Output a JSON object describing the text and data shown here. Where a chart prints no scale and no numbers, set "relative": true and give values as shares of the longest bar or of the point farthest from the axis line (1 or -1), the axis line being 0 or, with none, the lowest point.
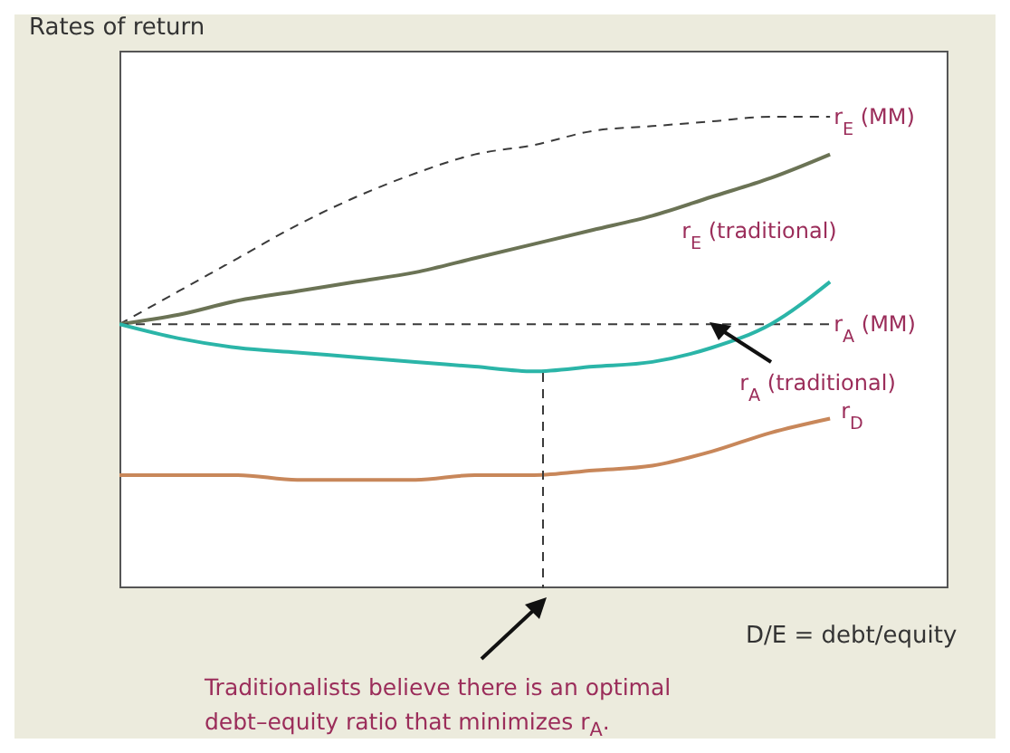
{
  "chart_data": {
    "type": "line",
    "ylabel": "Rates of return",
    "xlabel": "D/E = debt/equity",
    "relative": true,
    "marker": "none",
    "categories": [
      null,
      null,
      null,
      null,
      null,
      null,
      null,
      null,
      null,
      null,
      null,
      null,
      null
    ],
    "series": [
      {
        "name": "r$_{E}$ (MM)",
        "color": "#3a3a3a",
        "line_style": "dashed",
        "values": [
          0.56,
          0.63,
          0.7,
          0.77,
          0.83,
          0.88,
          0.92,
          0.94,
          0.97,
          0.98,
          0.99,
          1.0,
          1.0
        ]
      },
      {
        "name": "r$_{E}$ (traditional)",
        "color": "#6b7355",
        "line_style": "solid",
        "values": [
          0.56,
          0.58,
          0.61,
          0.63,
          0.65,
          0.67,
          0.7,
          0.73,
          0.76,
          0.79,
          0.83,
          0.87,
          0.92
        ]
      },
      {
        "name": "r$_{A}$ (MM)",
        "color": "#3a3a3a",
        "line_style": "dashed",
        "values": [
          0.56,
          0.56,
          0.56,
          0.56,
          0.56,
          0.56,
          0.56,
          0.56,
          0.56,
          0.56,
          0.56,
          0.56,
          0.56
        ]
      },
      {
        "name": "r$_{A}$ (traditional)",
        "color": "#2bb5a8",
        "line_style": "solid",
        "values": [
          0.56,
          0.53,
          0.51,
          0.5,
          0.49,
          0.48,
          0.47,
          0.46,
          0.47,
          0.48,
          0.51,
          0.56,
          0.65
        ]
      },
      {
        "name": "r$_{D}$",
        "color": "#c8875a",
        "line_style": "solid",
        "values": [
          0.24,
          0.24,
          0.24,
          0.23,
          0.23,
          0.23,
          0.24,
          0.24,
          0.25,
          0.26,
          0.29,
          0.33,
          0.36
        ]
      }
    ],
    "annotations": [
      "Traditionalists believe there is an optimal debt–equity ratio that minimizes r$_{A}$."
    ]
  }
}
